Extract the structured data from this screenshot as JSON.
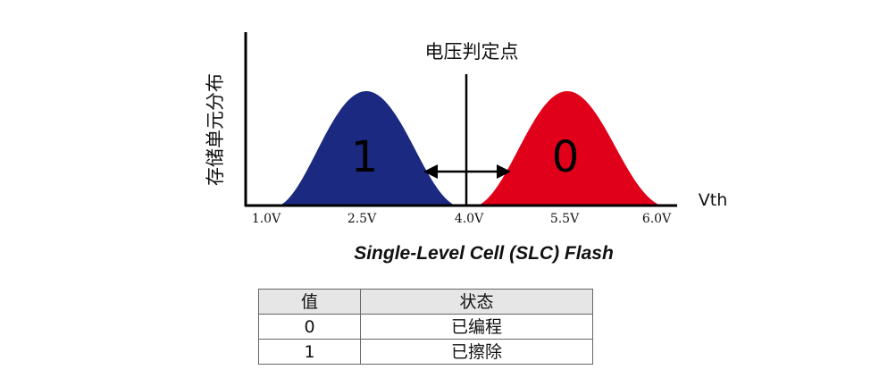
{
  "chart": {
    "y_axis_label": "存储单元分布",
    "x_axis_label": "Vth",
    "threshold_label": "电压判定点",
    "x_ticks": [
      "1.0V",
      "2.5V",
      "4.0V",
      "5.5V",
      "6.0V"
    ],
    "states": [
      {
        "label": "1",
        "color": "#1b2a80"
      },
      {
        "label": "0",
        "color": "#e1001a"
      }
    ],
    "caption": "Single-Level Cell (SLC) Flash"
  },
  "chart_data": {
    "type": "area",
    "xlabel": "Vth",
    "ylabel": "存储单元分布",
    "x_ticks": [
      "1.0V",
      "2.5V",
      "4.0V",
      "5.5V",
      "6.0V"
    ],
    "series": [
      {
        "name": "1",
        "center": "2.5V",
        "color": "#1b2a80"
      },
      {
        "name": "0",
        "center": "5.5V",
        "color": "#e1001a"
      }
    ],
    "threshold": {
      "value": "4.0V",
      "label": "电压判定点"
    }
  },
  "table": {
    "headers": [
      "值",
      "状态"
    ],
    "rows": [
      [
        "0",
        "已编程"
      ],
      [
        "1",
        "已擦除"
      ]
    ]
  }
}
